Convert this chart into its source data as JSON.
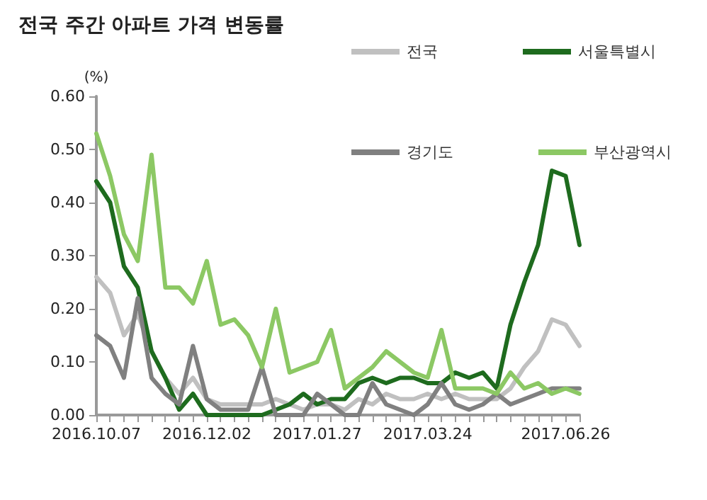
{
  "chart_data": {
    "type": "line",
    "title": "전국 주간 아파트 가격 변동률",
    "ylabel": "(%)",
    "categories": [
      "2016.10.07",
      null,
      null,
      null,
      null,
      null,
      null,
      null,
      "2016.12.02",
      null,
      null,
      null,
      null,
      null,
      null,
      null,
      "2017.01.27",
      null,
      null,
      null,
      null,
      null,
      null,
      null,
      "2017.03.24",
      null,
      null,
      null,
      null,
      null,
      null,
      null,
      null,
      null,
      "2017.06.26",
      null
    ],
    "series": [
      {
        "name": "전국",
        "color": "#c0c0c0",
        "values": [
          0.26,
          0.23,
          0.15,
          0.19,
          0.12,
          0.07,
          0.04,
          0.07,
          0.03,
          0.02,
          0.02,
          0.02,
          0.02,
          0.03,
          0.02,
          0.01,
          0.02,
          0.02,
          0.01,
          0.03,
          0.02,
          0.04,
          0.03,
          0.03,
          0.04,
          0.03,
          0.04,
          0.03,
          0.03,
          0.03,
          0.05,
          0.09,
          0.12,
          0.18,
          0.17,
          0.13
        ]
      },
      {
        "name": "서울특별시",
        "color": "#1e6b1e",
        "values": [
          0.44,
          0.4,
          0.28,
          0.24,
          0.12,
          0.07,
          0.01,
          0.04,
          0.0,
          0.0,
          0.0,
          0.0,
          0.0,
          0.01,
          0.02,
          0.04,
          0.02,
          0.03,
          0.03,
          0.06,
          0.07,
          0.06,
          0.07,
          0.07,
          0.06,
          0.06,
          0.08,
          0.07,
          0.08,
          0.05,
          0.17,
          0.25,
          0.32,
          0.46,
          0.45,
          0.32
        ]
      },
      {
        "name": "경기도",
        "color": "#808080",
        "values": [
          0.15,
          0.13,
          0.07,
          0.22,
          0.07,
          0.04,
          0.02,
          0.13,
          0.03,
          0.01,
          0.01,
          0.01,
          0.09,
          0.0,
          0.0,
          0.0,
          0.04,
          0.02,
          0.0,
          0.0,
          0.06,
          0.02,
          0.01,
          0.0,
          0.02,
          0.06,
          0.02,
          0.01,
          0.02,
          0.04,
          0.02,
          0.03,
          0.04,
          0.05,
          0.05,
          0.05
        ]
      },
      {
        "name": "부산광역시",
        "color": "#8cc864",
        "values": [
          0.53,
          0.45,
          0.34,
          0.29,
          0.49,
          0.24,
          0.24,
          0.21,
          0.29,
          0.17,
          0.18,
          0.15,
          0.09,
          0.2,
          0.08,
          0.09,
          0.1,
          0.16,
          0.05,
          0.07,
          0.09,
          0.12,
          0.1,
          0.08,
          0.07,
          0.16,
          0.05,
          0.05,
          0.05,
          0.04,
          0.08,
          0.05,
          0.06,
          0.04,
          0.05,
          0.04
        ]
      }
    ],
    "ylim": [
      0,
      0.6
    ],
    "yticks": [
      {
        "value": 0,
        "label": "0.00"
      },
      {
        "value": 0.1,
        "label": "0.10"
      },
      {
        "value": 0.2,
        "label": "0.20"
      },
      {
        "value": 0.3,
        "label": "0.30"
      },
      {
        "value": 0.4,
        "label": "0.40"
      },
      {
        "value": 0.5,
        "label": "0.50"
      },
      {
        "value": 0.6,
        "label": "0.60"
      }
    ],
    "grid": false,
    "legend": "top right",
    "marker": "none",
    "line_style": "solid"
  }
}
